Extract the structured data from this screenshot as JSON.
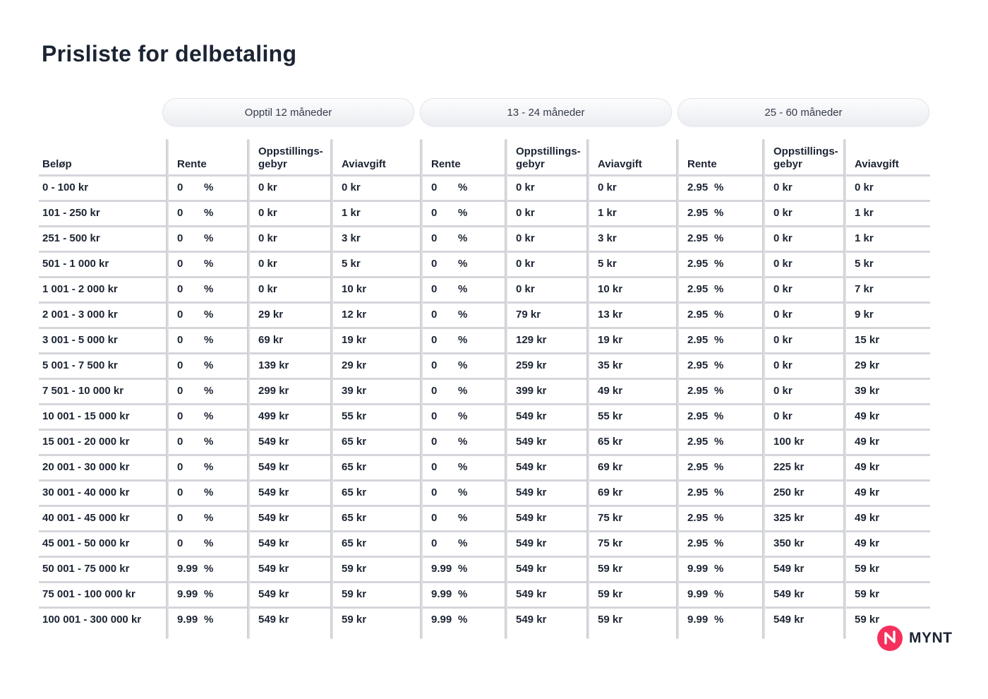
{
  "title": "Prisliste for delbetaling",
  "tabs": [
    {
      "label": "Opptil 12 måneder"
    },
    {
      "label": "13 - 24 måneder"
    },
    {
      "label": "25 - 60 måneder"
    }
  ],
  "table": {
    "amount_header": "Beløp",
    "group_column_headers": {
      "rente": "Rente",
      "gebyr": "Oppstillings-\ngebyr",
      "avgift": "Aviavgift"
    },
    "rows": [
      {
        "amount": "0 - 100 kr",
        "groups": [
          [
            "0 %",
            "0 kr",
            "0 kr"
          ],
          [
            "0 %",
            "0 kr",
            "0 kr"
          ],
          [
            "2.95 %",
            "0 kr",
            "0 kr"
          ]
        ]
      },
      {
        "amount": "101 - 250 kr",
        "groups": [
          [
            "0 %",
            "0 kr",
            "1 kr"
          ],
          [
            "0 %",
            "0 kr",
            "1 kr"
          ],
          [
            "2.95 %",
            "0 kr",
            "1 kr"
          ]
        ]
      },
      {
        "amount": "251 - 500 kr",
        "groups": [
          [
            "0 %",
            "0 kr",
            "3 kr"
          ],
          [
            "0 %",
            "0 kr",
            "3 kr"
          ],
          [
            "2.95 %",
            "0 kr",
            "1 kr"
          ]
        ]
      },
      {
        "amount": "501 - 1 000 kr",
        "groups": [
          [
            "0 %",
            "0 kr",
            "5 kr"
          ],
          [
            "0 %",
            "0 kr",
            "5 kr"
          ],
          [
            "2.95 %",
            "0 kr",
            "5 kr"
          ]
        ]
      },
      {
        "amount": "1 001 - 2 000 kr",
        "groups": [
          [
            "0 %",
            "0 kr",
            "10 kr"
          ],
          [
            "0 %",
            "0 kr",
            "10 kr"
          ],
          [
            "2.95 %",
            "0 kr",
            "7 kr"
          ]
        ]
      },
      {
        "amount": "2 001 - 3 000 kr",
        "groups": [
          [
            "0 %",
            "29 kr",
            "12 kr"
          ],
          [
            "0 %",
            "79 kr",
            "13 kr"
          ],
          [
            "2.95 %",
            "0 kr",
            "9 kr"
          ]
        ]
      },
      {
        "amount": "3 001 - 5 000 kr",
        "groups": [
          [
            "0 %",
            "69 kr",
            "19 kr"
          ],
          [
            "0 %",
            "129 kr",
            "19 kr"
          ],
          [
            "2.95 %",
            "0 kr",
            "15 kr"
          ]
        ]
      },
      {
        "amount": "5 001 - 7 500 kr",
        "groups": [
          [
            "0 %",
            "139 kr",
            "29 kr"
          ],
          [
            "0 %",
            "259 kr",
            "35 kr"
          ],
          [
            "2.95 %",
            "0 kr",
            "29 kr"
          ]
        ]
      },
      {
        "amount": "7 501 - 10 000 kr",
        "groups": [
          [
            "0 %",
            "299 kr",
            "39 kr"
          ],
          [
            "0 %",
            "399 kr",
            "49 kr"
          ],
          [
            "2.95 %",
            "0 kr",
            "39 kr"
          ]
        ]
      },
      {
        "amount": "10 001 - 15 000 kr",
        "groups": [
          [
            "0 %",
            "499 kr",
            "55 kr"
          ],
          [
            "0 %",
            "549 kr",
            "55 kr"
          ],
          [
            "2.95 %",
            "0 kr",
            "49 kr"
          ]
        ]
      },
      {
        "amount": "15 001 - 20 000 kr",
        "groups": [
          [
            "0 %",
            "549 kr",
            "65 kr"
          ],
          [
            "0 %",
            "549 kr",
            "65 kr"
          ],
          [
            "2.95 %",
            "100 kr",
            "49 kr"
          ]
        ]
      },
      {
        "amount": "20 001 - 30 000 kr",
        "groups": [
          [
            "0 %",
            "549 kr",
            "65 kr"
          ],
          [
            "0 %",
            "549 kr",
            "69 kr"
          ],
          [
            "2.95 %",
            "225 kr",
            "49 kr"
          ]
        ]
      },
      {
        "amount": "30 001 - 40 000 kr",
        "groups": [
          [
            "0 %",
            "549 kr",
            "65 kr"
          ],
          [
            "0 %",
            "549 kr",
            "69 kr"
          ],
          [
            "2.95 %",
            "250 kr",
            "49 kr"
          ]
        ]
      },
      {
        "amount": "40 001 - 45 000 kr",
        "groups": [
          [
            "0 %",
            "549 kr",
            "65 kr"
          ],
          [
            "0 %",
            "549 kr",
            "75 kr"
          ],
          [
            "2.95 %",
            "325 kr",
            "49 kr"
          ]
        ]
      },
      {
        "amount": "45 001 - 50 000 kr",
        "groups": [
          [
            "0 %",
            "549 kr",
            "65 kr"
          ],
          [
            "0 %",
            "549 kr",
            "75 kr"
          ],
          [
            "2.95 %",
            "350 kr",
            "49 kr"
          ]
        ]
      },
      {
        "amount": "50 001 - 75 000 kr",
        "groups": [
          [
            "9.99 %",
            "549 kr",
            "59 kr"
          ],
          [
            "9.99 %",
            "549 kr",
            "59 kr"
          ],
          [
            "9.99 %",
            "549 kr",
            "59 kr"
          ]
        ]
      },
      {
        "amount": "75 001 - 100 000 kr",
        "groups": [
          [
            "9.99 %",
            "549 kr",
            "59 kr"
          ],
          [
            "9.99 %",
            "549 kr",
            "59 kr"
          ],
          [
            "9.99 %",
            "549 kr",
            "59 kr"
          ]
        ]
      },
      {
        "amount": "100 001 - 300 000 kr",
        "groups": [
          [
            "9.99 %",
            "549 kr",
            "59 kr"
          ],
          [
            "9.99 %",
            "549 kr",
            "59 kr"
          ],
          [
            "9.99 %",
            "549 kr",
            "59 kr"
          ]
        ]
      }
    ]
  },
  "logo": {
    "brand": "MYNT",
    "icon": "lightning-n-icon",
    "circle_color": "#F5305C"
  },
  "colors": {
    "text": "#1C2433",
    "separator": "#D4D6DB",
    "pill_border": "#E3E5EA",
    "accent": "#F5305C"
  }
}
